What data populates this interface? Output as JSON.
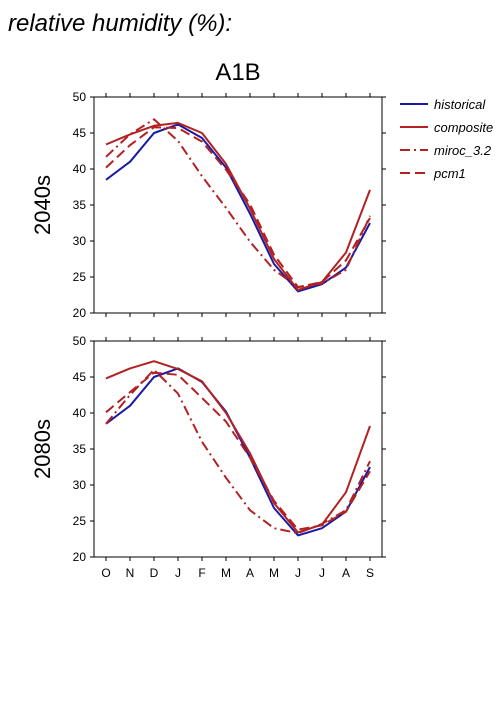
{
  "page": {
    "heading": "relative humidity (%):",
    "scenario_title": "A1B"
  },
  "legend": {
    "position": "top-right",
    "items": [
      {
        "label": "historical",
        "color": "#1a1aa6",
        "dash": "solid"
      },
      {
        "label": "composite",
        "color": "#b22222",
        "dash": "solid"
      },
      {
        "label": "miroc_3.2",
        "color": "#b22222",
        "dash": "dashdot"
      },
      {
        "label": "pcm1",
        "color": "#b22222",
        "dash": "dashed"
      }
    ]
  },
  "chart_data": [
    {
      "type": "line",
      "panel_label": "2040s",
      "categories": [
        "O",
        "N",
        "D",
        "J",
        "F",
        "M",
        "A",
        "M",
        "J",
        "J",
        "A",
        "S"
      ],
      "ylim": [
        20,
        50
      ],
      "yticks": [
        20,
        25,
        30,
        35,
        40,
        45,
        50
      ],
      "grid": false,
      "series": [
        {
          "name": "historical",
          "color": "#1a1aa6",
          "dash": "solid",
          "values": [
            38.5,
            41.0,
            45.0,
            46.2,
            44.3,
            40.2,
            33.8,
            26.8,
            23.0,
            24.0,
            26.3,
            32.5
          ]
        },
        {
          "name": "composite",
          "color": "#b22222",
          "dash": "solid",
          "values": [
            43.4,
            44.8,
            46.0,
            46.4,
            45.0,
            40.7,
            34.5,
            27.5,
            23.2,
            24.3,
            28.4,
            37.1
          ]
        },
        {
          "name": "miroc_3.2",
          "color": "#b22222",
          "dash": "dashdot",
          "values": [
            41.7,
            44.8,
            46.9,
            43.9,
            39.0,
            34.6,
            29.9,
            26.0,
            23.6,
            24.1,
            26.0,
            33.5
          ]
        },
        {
          "name": "pcm1",
          "color": "#b22222",
          "dash": "dashed",
          "values": [
            40.2,
            43.3,
            45.8,
            45.7,
            43.8,
            39.9,
            35.1,
            28.1,
            23.6,
            24.3,
            27.3,
            33.2
          ]
        }
      ]
    },
    {
      "type": "line",
      "panel_label": "2080s",
      "categories": [
        "O",
        "N",
        "D",
        "J",
        "F",
        "M",
        "A",
        "M",
        "J",
        "J",
        "A",
        "S"
      ],
      "ylim": [
        20,
        50
      ],
      "yticks": [
        20,
        25,
        30,
        35,
        40,
        45,
        50
      ],
      "grid": false,
      "series": [
        {
          "name": "historical",
          "color": "#1a1aa6",
          "dash": "solid",
          "values": [
            38.5,
            41.0,
            45.0,
            46.2,
            44.3,
            40.2,
            33.8,
            26.8,
            23.0,
            24.0,
            26.3,
            32.5
          ]
        },
        {
          "name": "composite",
          "color": "#b22222",
          "dash": "solid",
          "values": [
            44.8,
            46.2,
            47.2,
            46.1,
            44.4,
            40.0,
            34.4,
            27.5,
            23.4,
            24.5,
            29.0,
            38.2
          ]
        },
        {
          "name": "miroc_3.2",
          "color": "#b22222",
          "dash": "dashdot",
          "values": [
            38.5,
            42.5,
            46.0,
            42.7,
            36.0,
            31.0,
            26.5,
            24.0,
            23.3,
            24.6,
            26.5,
            33.3
          ]
        },
        {
          "name": "pcm1",
          "color": "#b22222",
          "dash": "dashed",
          "values": [
            40.1,
            42.9,
            45.6,
            45.3,
            42.1,
            38.8,
            33.8,
            27.8,
            23.8,
            24.4,
            26.3,
            31.9
          ]
        }
      ]
    }
  ]
}
